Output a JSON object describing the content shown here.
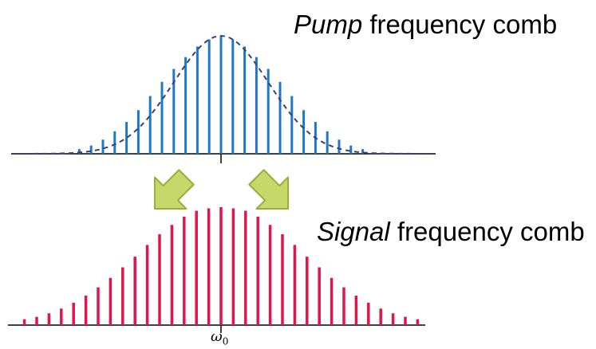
{
  "labels": {
    "pump_italic": "Pump",
    "pump_rest": " frequency comb",
    "signal_italic": "Signal",
    "signal_rest": " frequency comb",
    "center_symbol": "ω",
    "center_subscript": "0"
  },
  "colors": {
    "pump": "#1f77c8",
    "envelope": "#3a3f7a",
    "signal": "#e0154a",
    "arrow_fill": "#c6d86a",
    "arrow_stroke": "#9aae3a",
    "axis": "#000000"
  },
  "icons": {
    "left_arrow": "down-left-arrow-icon",
    "right_arrow": "down-right-arrow-icon"
  },
  "pump_comb": {
    "heights": [
      0.04,
      0.07,
      0.12,
      0.19,
      0.27,
      0.37,
      0.49,
      0.61,
      0.72,
      0.82,
      0.91,
      0.97,
      1.0,
      0.97,
      0.91,
      0.82,
      0.72,
      0.61,
      0.49,
      0.37,
      0.27,
      0.19,
      0.12,
      0.07,
      0.04
    ]
  },
  "signal_comb": {
    "heights": [
      0.05,
      0.07,
      0.1,
      0.14,
      0.19,
      0.25,
      0.32,
      0.4,
      0.49,
      0.58,
      0.68,
      0.77,
      0.85,
      0.92,
      0.97,
      0.99,
      1.0,
      0.99,
      0.97,
      0.92,
      0.85,
      0.77,
      0.68,
      0.58,
      0.49,
      0.4,
      0.32,
      0.25,
      0.19,
      0.14,
      0.1,
      0.07,
      0.05
    ]
  }
}
